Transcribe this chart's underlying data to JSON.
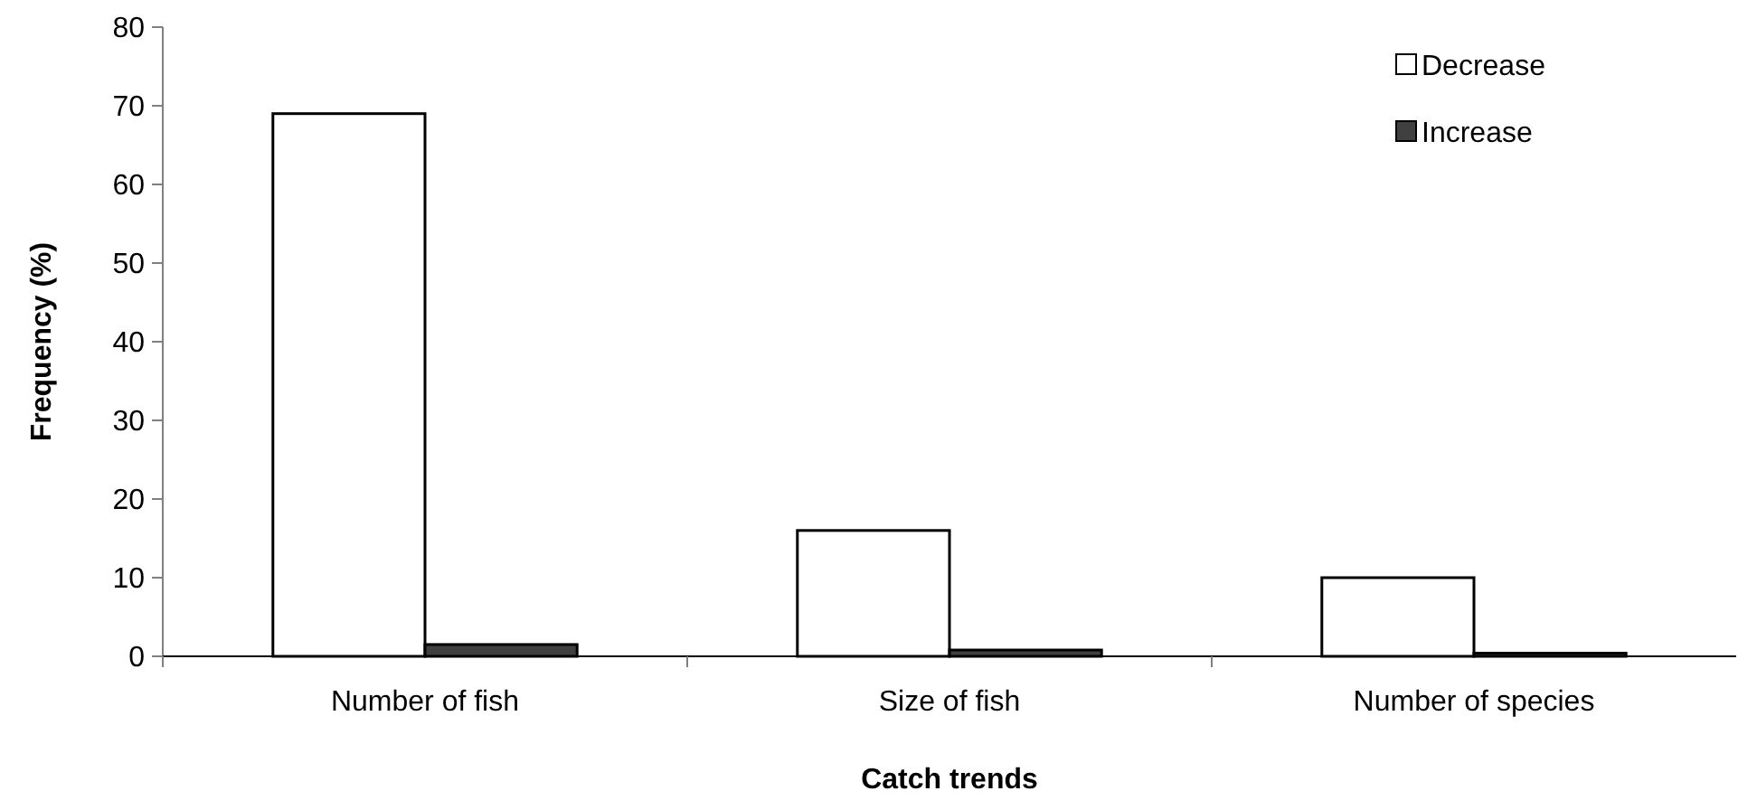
{
  "chart_data": {
    "type": "bar",
    "xlabel": "Catch trends",
    "ylabel": "Frequency (%)",
    "categories": [
      "Number of fish",
      "Size of fish",
      "Number of species"
    ],
    "series": [
      {
        "name": "Decrease",
        "color": "#ffffff",
        "values": [
          69,
          16,
          10
        ]
      },
      {
        "name": "Increase",
        "color": "#404040",
        "values": [
          1.5,
          0.8,
          0.4
        ]
      }
    ],
    "ylim": [
      0,
      80
    ],
    "yticks": [
      0,
      10,
      20,
      30,
      40,
      50,
      60,
      70,
      80
    ],
    "grid": false,
    "legend": "top right"
  }
}
